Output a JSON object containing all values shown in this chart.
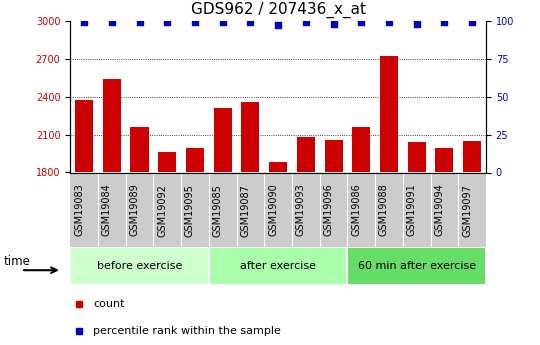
{
  "title": "GDS962 / 207436_x_at",
  "categories": [
    "GSM19083",
    "GSM19084",
    "GSM19089",
    "GSM19092",
    "GSM19095",
    "GSM19085",
    "GSM19087",
    "GSM19090",
    "GSM19093",
    "GSM19096",
    "GSM19086",
    "GSM19088",
    "GSM19091",
    "GSM19094",
    "GSM19097"
  ],
  "bar_values": [
    2370,
    2540,
    2160,
    1960,
    1990,
    2310,
    2360,
    1880,
    2080,
    2060,
    2160,
    2720,
    2040,
    1990,
    2050
  ],
  "percentile_values": [
    99,
    99,
    99,
    99,
    99,
    99,
    99,
    97,
    99,
    98,
    99,
    99,
    98,
    99,
    99
  ],
  "bar_color": "#cc0000",
  "percentile_color": "#0000cc",
  "ylim_left": [
    1800,
    3000
  ],
  "ylim_right": [
    0,
    100
  ],
  "yticks_left": [
    1800,
    2100,
    2400,
    2700,
    3000
  ],
  "yticks_right": [
    0,
    25,
    50,
    75,
    100
  ],
  "groups": [
    {
      "label": "before exercise",
      "start": 0,
      "end": 5,
      "color": "#ccffcc"
    },
    {
      "label": "after exercise",
      "start": 5,
      "end": 10,
      "color": "#aaffaa"
    },
    {
      "label": "60 min after exercise",
      "start": 10,
      "end": 15,
      "color": "#66dd66"
    }
  ],
  "tick_bg_color": "#cccccc",
  "legend_count_label": "count",
  "legend_percentile_label": "percentile rank within the sample",
  "time_label": "time",
  "title_fontsize": 11,
  "tick_fontsize": 7,
  "bar_label_fontsize": 7,
  "group_fontsize": 8
}
